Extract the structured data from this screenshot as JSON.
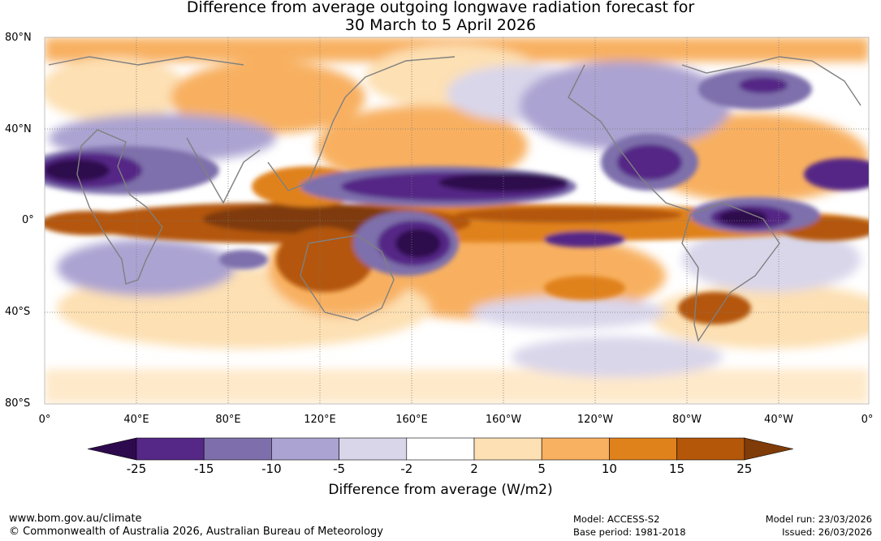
{
  "title": {
    "line1": "Difference from average outgoing longwave radiation forecast for",
    "line2": "30 March to 5 April 2026"
  },
  "map": {
    "lat_labels": [
      "80°N",
      "40°N",
      "0°",
      "40°S",
      "80°S"
    ],
    "lon_labels": [
      "0°",
      "40°E",
      "80°E",
      "120°E",
      "160°E",
      "160°W",
      "120°W",
      "80°W",
      "40°W",
      "0°"
    ]
  },
  "legend": {
    "title": "Difference from average (W/m2)",
    "ticks": [
      "-25",
      "-15",
      "-10",
      "-5",
      "-2",
      "2",
      "5",
      "10",
      "15",
      "25"
    ],
    "colors": [
      "#2d0a4d",
      "#552786",
      "#7e6fac",
      "#aba3d1",
      "#d9d6ea",
      "#ffffff",
      "#fde0b3",
      "#f8b061",
      "#e0821c",
      "#b45709",
      "#7f3b08"
    ]
  },
  "footer": {
    "website": "www.bom.gov.au/climate",
    "copyright": "© Commonwealth of Australia 2026, Australian Bureau of Meteorology",
    "model": "Model: ACCESS-S2",
    "base_period": "Base period: 1981-2018",
    "model_run": "Model run: 23/03/2026",
    "issued": "Issued: 26/03/2026"
  }
}
